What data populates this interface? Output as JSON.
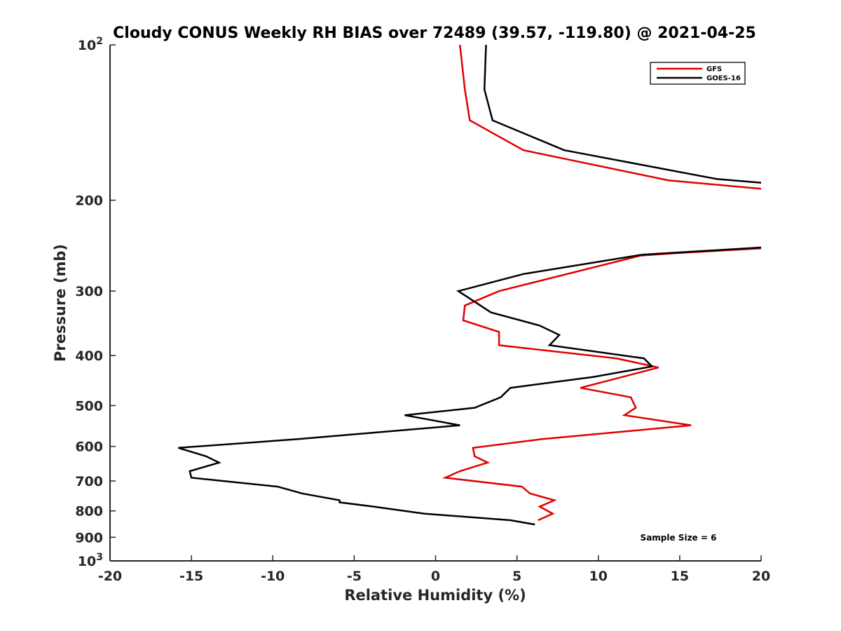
{
  "chart_data": {
    "type": "line",
    "title": "Cloudy CONUS Weekly RH BIAS over 72489 (39.57, -119.80) @ 2021-04-25",
    "xlabel": "Relative Humidity (%)",
    "ylabel": "Pressure (mb)",
    "xlim": [
      -20,
      20
    ],
    "ylim": [
      100,
      1000
    ],
    "yscale": "log",
    "y_reversed": true,
    "x_ticks": [
      "-20",
      "-15",
      "-10",
      "-5",
      "0",
      "5",
      "10",
      "15",
      "20"
    ],
    "y_ticks": [
      {
        "value": 100,
        "base": "10",
        "exp": "2"
      },
      {
        "value": 200,
        "label": "200"
      },
      {
        "value": 300,
        "label": "300"
      },
      {
        "value": 400,
        "label": "400"
      },
      {
        "value": 500,
        "label": "500"
      },
      {
        "value": 600,
        "label": "600"
      },
      {
        "value": 700,
        "label": "700"
      },
      {
        "value": 800,
        "label": "800"
      },
      {
        "value": 900,
        "label": "900"
      },
      {
        "value": 1000,
        "base": "10",
        "exp": "3"
      }
    ],
    "legend_position": "top-right",
    "annotation": "Sample Size = 6",
    "series": [
      {
        "name": "GFS",
        "color": "#e00000",
        "points": [
          [
            1.5,
            100
          ],
          [
            1.8,
            122
          ],
          [
            2.1,
            140
          ],
          [
            5.4,
            160
          ],
          [
            14.3,
            183
          ],
          [
            20.0,
            190
          ],
          [
            null,
            null
          ],
          [
            20.0,
            248
          ],
          [
            15.0,
            253
          ],
          [
            12.6,
            256
          ],
          [
            3.9,
            300
          ],
          [
            1.8,
            320
          ],
          [
            1.7,
            342
          ],
          [
            3.9,
            360
          ],
          [
            3.9,
            382
          ],
          [
            11.1,
            405
          ],
          [
            13.7,
            422
          ],
          [
            8.9,
            462
          ],
          [
            12.0,
            482
          ],
          [
            12.3,
            505
          ],
          [
            11.6,
            522
          ],
          [
            15.7,
            546
          ],
          [
            6.5,
            581
          ],
          [
            2.3,
            604
          ],
          [
            2.4,
            627
          ],
          [
            3.2,
            645
          ],
          [
            1.5,
            670
          ],
          [
            0.6,
            690
          ],
          [
            5.3,
            718
          ],
          [
            5.8,
            740
          ],
          [
            7.3,
            763
          ],
          [
            6.4,
            785
          ],
          [
            7.2,
            810
          ],
          [
            6.3,
            834
          ]
        ]
      },
      {
        "name": "GOES-16",
        "color": "#000000",
        "points": [
          [
            3.1,
            100
          ],
          [
            3.0,
            122
          ],
          [
            3.5,
            140
          ],
          [
            7.9,
            160
          ],
          [
            17.3,
            182
          ],
          [
            20.0,
            185
          ],
          [
            null,
            null
          ],
          [
            20.0,
            247
          ],
          [
            12.7,
            255
          ],
          [
            5.4,
            278
          ],
          [
            1.4,
            300
          ],
          [
            3.4,
            330
          ],
          [
            6.4,
            350
          ],
          [
            7.6,
            365
          ],
          [
            7.0,
            382
          ],
          [
            12.8,
            405
          ],
          [
            13.3,
            420
          ],
          [
            9.7,
            440
          ],
          [
            4.6,
            462
          ],
          [
            4.0,
            482
          ],
          [
            2.4,
            505
          ],
          [
            -1.9,
            522
          ],
          [
            1.5,
            546
          ],
          [
            -8.5,
            581
          ],
          [
            -15.8,
            604
          ],
          [
            -14.1,
            627
          ],
          [
            -13.3,
            645
          ],
          [
            -15.1,
            670
          ],
          [
            -15.0,
            690
          ],
          [
            -9.7,
            718
          ],
          [
            -8.2,
            740
          ],
          [
            -5.9,
            763
          ],
          [
            -5.9,
            770
          ],
          [
            -3.8,
            785
          ],
          [
            -0.7,
            810
          ],
          [
            4.6,
            834
          ],
          [
            6.1,
            850
          ]
        ]
      }
    ]
  }
}
